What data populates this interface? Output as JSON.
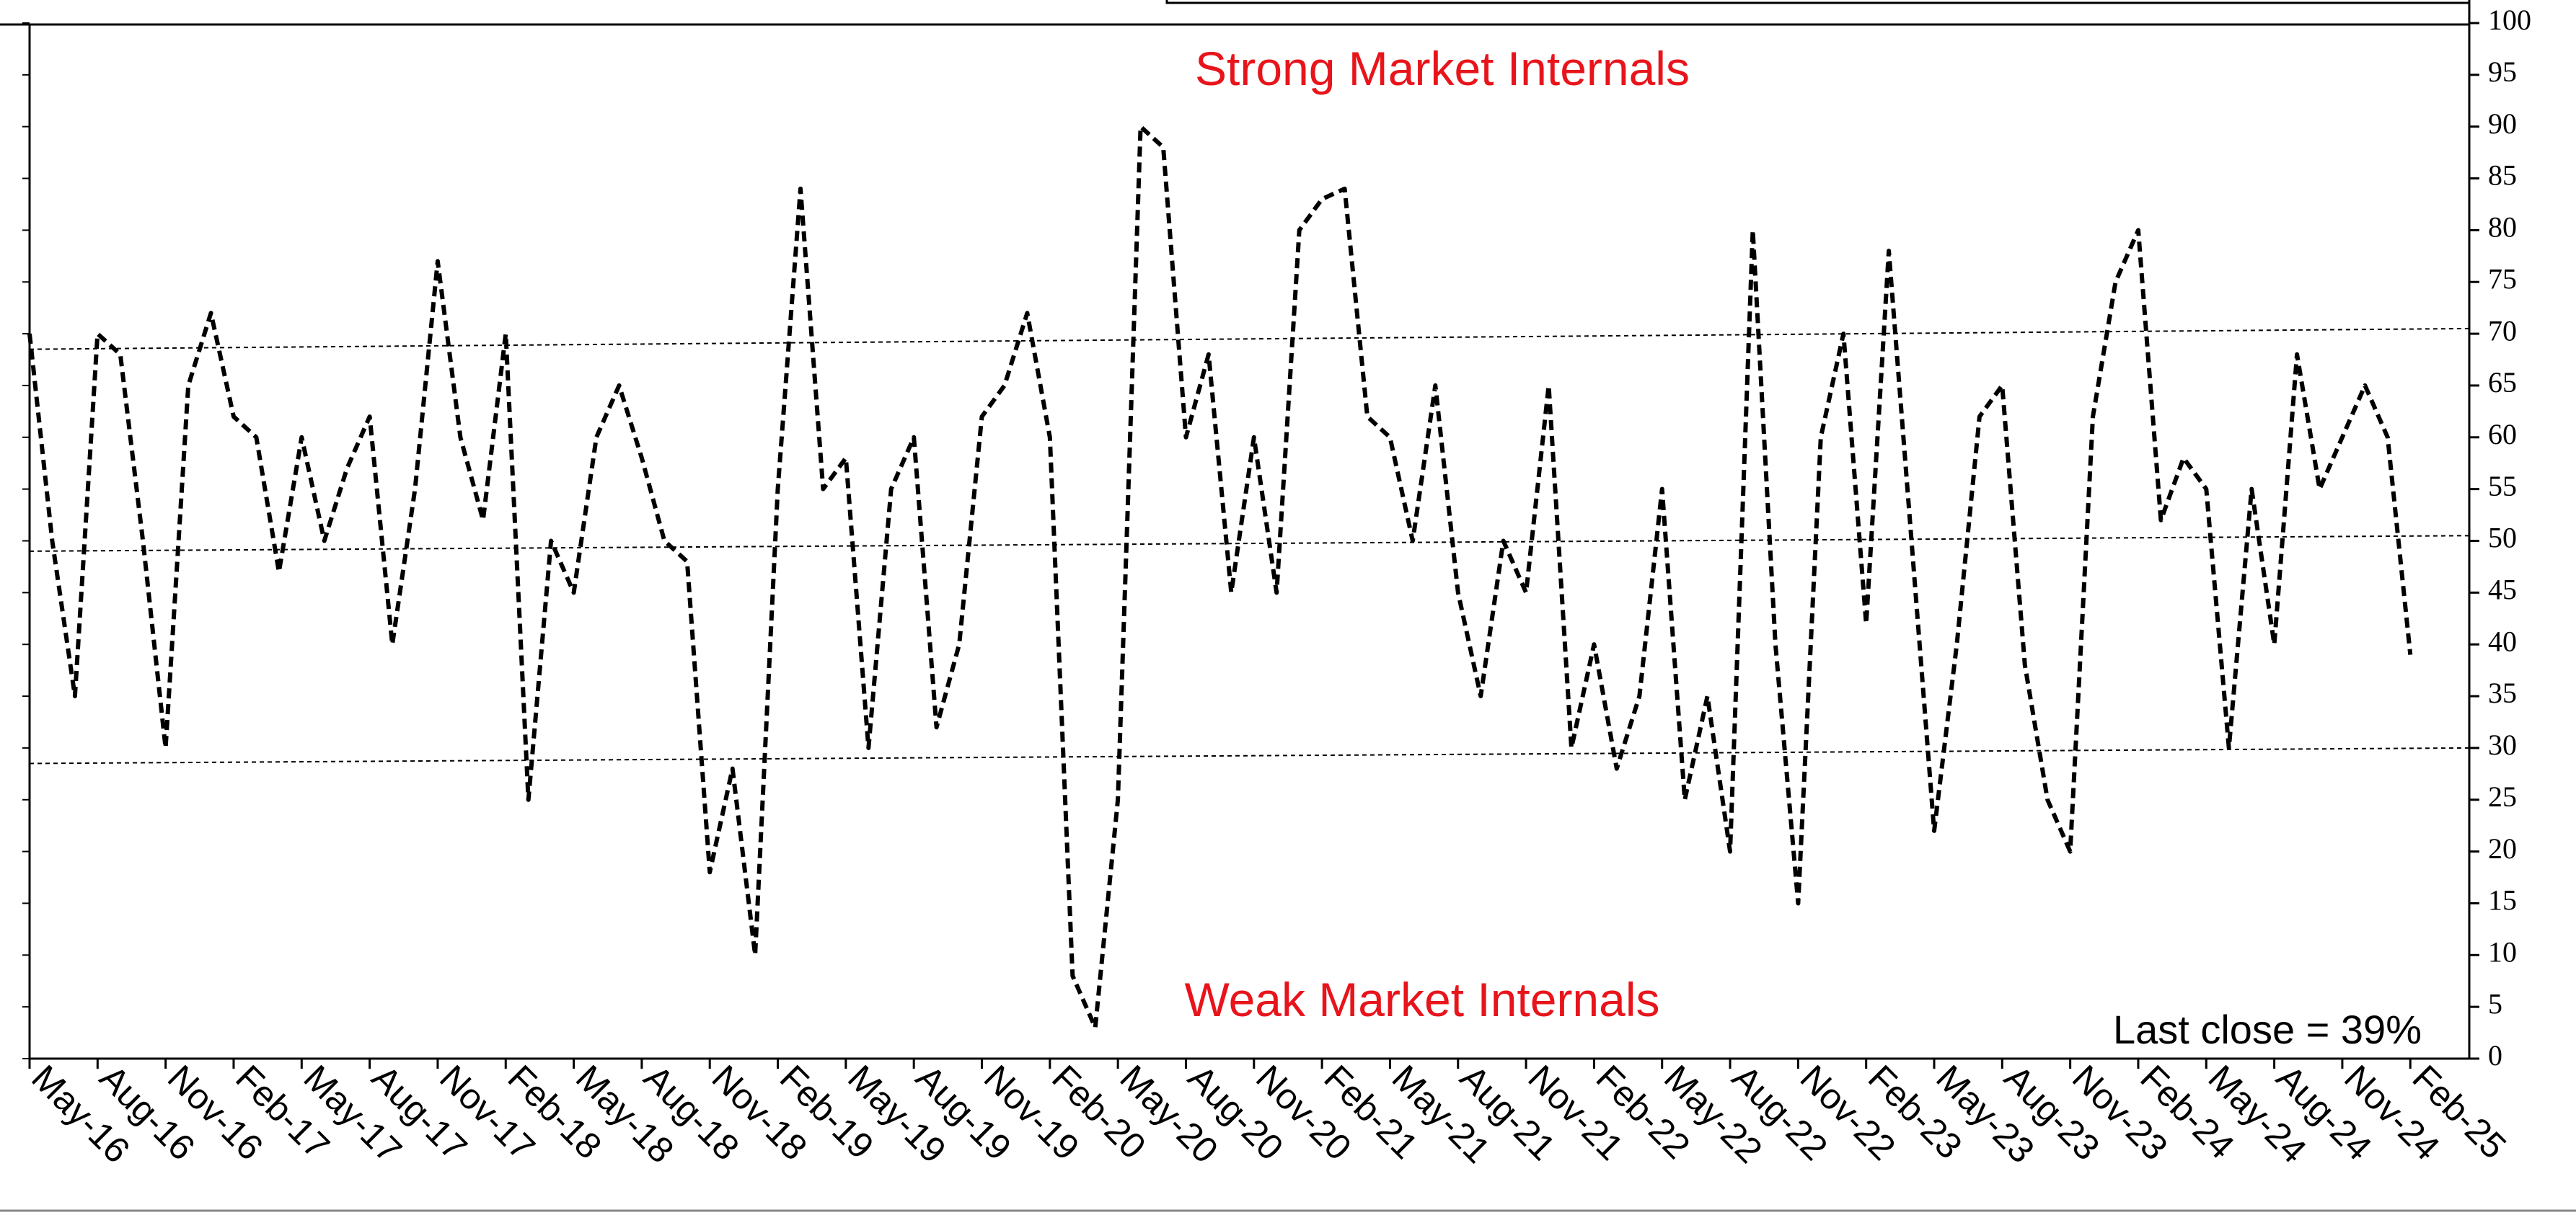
{
  "chart_data": {
    "type": "line",
    "categories": [
      "May-16",
      null,
      null,
      "Aug-16",
      null,
      null,
      "Nov-16",
      null,
      null,
      "Feb-17",
      null,
      null,
      "May-17",
      null,
      null,
      "Aug-17",
      null,
      null,
      "Nov-17",
      null,
      null,
      "Feb-18",
      null,
      null,
      "May-18",
      null,
      null,
      "Aug-18",
      null,
      null,
      "Nov-18",
      null,
      null,
      "Feb-19",
      null,
      null,
      "May-19",
      null,
      null,
      "Aug-19",
      null,
      null,
      "Nov-19",
      null,
      null,
      "Feb-20",
      null,
      null,
      "May-20",
      null,
      null,
      "Aug-20",
      null,
      null,
      "Nov-20",
      null,
      null,
      "Feb-21",
      null,
      null,
      "May-21",
      null,
      null,
      "Aug-21",
      null,
      null,
      "Nov-21",
      null,
      null,
      "Feb-22",
      null,
      null,
      "May-22",
      null,
      null,
      "Aug-22",
      null,
      null,
      "Nov-22",
      null,
      null,
      "Feb-23",
      null,
      null,
      "May-23",
      null,
      null,
      "Aug-23",
      null,
      null,
      "Nov-23",
      null,
      null,
      "Feb-24",
      null,
      null,
      "May-24",
      null,
      null,
      "Aug-24",
      null,
      null,
      "Nov-24",
      null,
      null,
      "Feb-25"
    ],
    "series": [
      {
        "color": "#000000",
        "values": [
          70,
          50,
          35,
          70,
          68,
          50,
          30,
          65,
          72,
          62,
          60,
          47,
          60,
          50,
          57,
          62,
          40,
          55,
          77,
          60,
          52,
          70,
          25,
          50,
          45,
          60,
          65,
          58,
          50,
          48,
          18,
          28,
          10,
          55,
          84,
          55,
          58,
          30,
          55,
          60,
          32,
          40,
          62,
          65,
          72,
          60,
          8,
          3,
          25,
          90,
          88,
          60,
          68,
          45,
          60,
          45,
          80,
          83,
          84,
          62,
          60,
          50,
          65,
          45,
          35,
          50,
          45,
          65,
          30,
          40,
          28,
          35,
          55,
          25,
          35,
          20,
          80,
          40,
          15,
          60,
          70,
          42,
          78,
          50,
          22,
          40,
          62,
          65,
          38,
          25,
          20,
          62,
          75,
          80,
          52,
          58,
          55,
          30,
          55,
          40,
          68,
          55,
          60,
          65,
          60,
          39
        ]
      }
    ],
    "ylim": [
      0,
      100
    ],
    "yticks": [
      0,
      5,
      10,
      15,
      20,
      25,
      30,
      35,
      40,
      45,
      50,
      55,
      60,
      65,
      70,
      75,
      80,
      85,
      90,
      95,
      100
    ],
    "reference_lines": [
      [
        68.5,
        70.5
      ],
      [
        49,
        50.5
      ],
      [
        28.5,
        30
      ]
    ],
    "annotations": [
      "Strong Market Internals",
      "Weak Market Internals",
      "Last close =  39%"
    ],
    "annotation_color": "#e8141b"
  }
}
